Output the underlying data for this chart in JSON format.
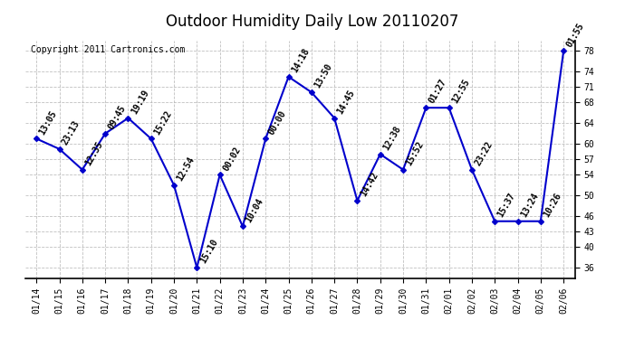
{
  "title": "Outdoor Humidity Daily Low 20110207",
  "copyright": "Copyright 2011 Cartronics.com",
  "dates": [
    "01/14",
    "01/15",
    "01/16",
    "01/17",
    "01/18",
    "01/19",
    "01/20",
    "01/21",
    "01/22",
    "01/23",
    "01/24",
    "01/25",
    "01/26",
    "01/27",
    "01/28",
    "01/29",
    "01/30",
    "01/31",
    "02/01",
    "02/02",
    "02/03",
    "02/04",
    "02/05",
    "02/06"
  ],
  "values": [
    61,
    59,
    55,
    62,
    65,
    61,
    52,
    36,
    54,
    44,
    61,
    73,
    70,
    65,
    49,
    58,
    55,
    67,
    67,
    55,
    45,
    45,
    45,
    78
  ],
  "labels": [
    "13:05",
    "23:13",
    "12:35",
    "09:45",
    "19:19",
    "15:22",
    "12:54",
    "15:10",
    "00:02",
    "10:04",
    "00:00",
    "14:18",
    "13:50",
    "14:45",
    "14:42",
    "12:38",
    "15:52",
    "01:27",
    "12:55",
    "23:22",
    "15:37",
    "13:24",
    "10:26",
    "01:55"
  ],
  "line_color": "#0000cc",
  "marker_color": "#0000cc",
  "background_color": "#ffffff",
  "grid_color": "#b0b0b0",
  "ylabel_ticks": [
    36,
    40,
    43,
    46,
    50,
    54,
    57,
    60,
    64,
    68,
    71,
    74,
    78
  ],
  "ylim": [
    34,
    80
  ],
  "title_fontsize": 12,
  "label_fontsize": 7,
  "copyright_fontsize": 7,
  "tick_fontsize": 7
}
